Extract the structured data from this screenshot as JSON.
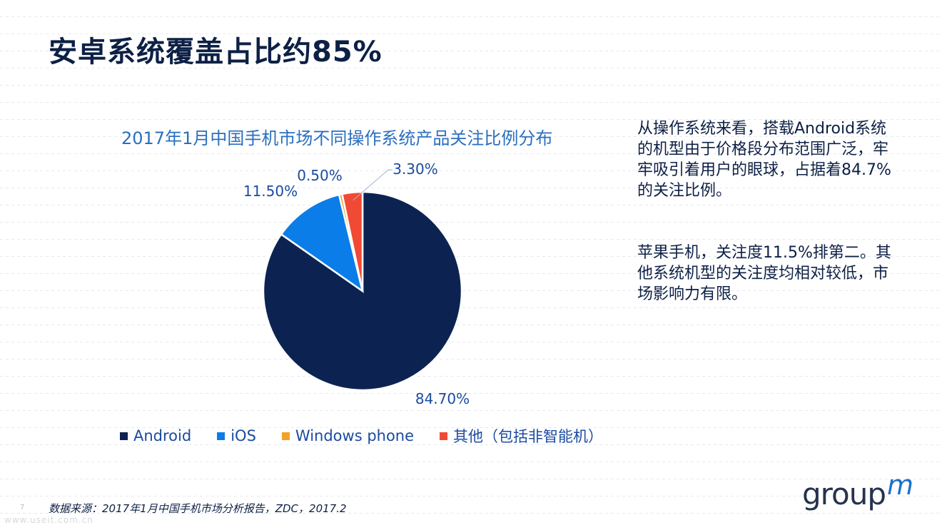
{
  "slide": {
    "title": "安卓系统覆盖占比约85%",
    "page_number": "7",
    "watermark": "www.useit.com.cn"
  },
  "chart_data": {
    "type": "pie",
    "title": "2017年1月中国手机市场不同操作系统产品关注比例分布",
    "categories": [
      "Android",
      "iOS",
      "Windows phone",
      "其他（包括非智能机）"
    ],
    "values": [
      84.7,
      11.5,
      0.5,
      3.3
    ],
    "value_labels": [
      "84.70%",
      "11.50%",
      "0.50%",
      "3.30%"
    ],
    "colors": [
      "#0c2352",
      "#0a7de8",
      "#f2a227",
      "#f04a35"
    ],
    "legend_position": "bottom",
    "start_angle_deg": 0,
    "direction": "clockwise"
  },
  "commentary": {
    "para1": "从操作系统来看，搭载Android系统的机型由于价格段分布范围广泛，牢牢吸引着用户的眼球，占据着84.7%的关注比例。",
    "para2": "苹果手机，关注度11.5%排第二。其他系统机型的关注度均相对较低，市场影响力有限。"
  },
  "source": "数据来源：2017年1月中国手机市场分析报告，ZDC，2017.2",
  "logo": {
    "main": "group",
    "accent": "m"
  }
}
